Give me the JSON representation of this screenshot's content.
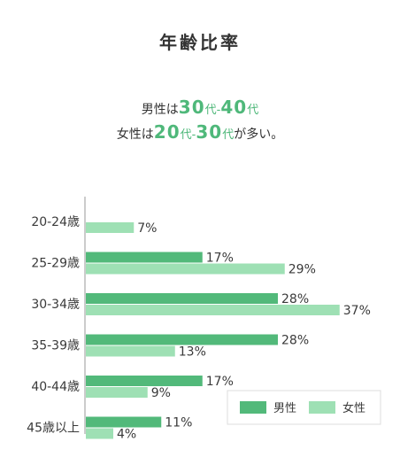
{
  "title": "年齢比率",
  "summary": {
    "line1": {
      "prefix": "男性は",
      "num1": "30",
      "unit1": "代",
      "sep": "-",
      "num2": "40",
      "unit2": "代",
      "suffix": ""
    },
    "line2": {
      "prefix": "女性は",
      "num1": "20",
      "unit1": "代",
      "sep": "-",
      "num2": "30",
      "unit2": "代",
      "suffix": "が多い。"
    }
  },
  "colors": {
    "male": "#52b97a",
    "female": "#9ee0b4",
    "accent_text": "#4fb87a",
    "axis": "#999999",
    "text": "#3a3a3a"
  },
  "chart_data": {
    "type": "bar",
    "orientation": "horizontal",
    "categories": [
      "20-24歳",
      "25-29歳",
      "30-34歳",
      "35-39歳",
      "40-44歳",
      "45歳以上"
    ],
    "series": [
      {
        "name": "男性",
        "values": [
          null,
          17,
          28,
          28,
          17,
          11
        ]
      },
      {
        "name": "女性",
        "values": [
          7,
          29,
          37,
          13,
          9,
          4
        ]
      }
    ],
    "value_suffix": "%",
    "xlim": [
      0,
      40
    ],
    "legend_position": "bottom-right",
    "grid": false
  }
}
